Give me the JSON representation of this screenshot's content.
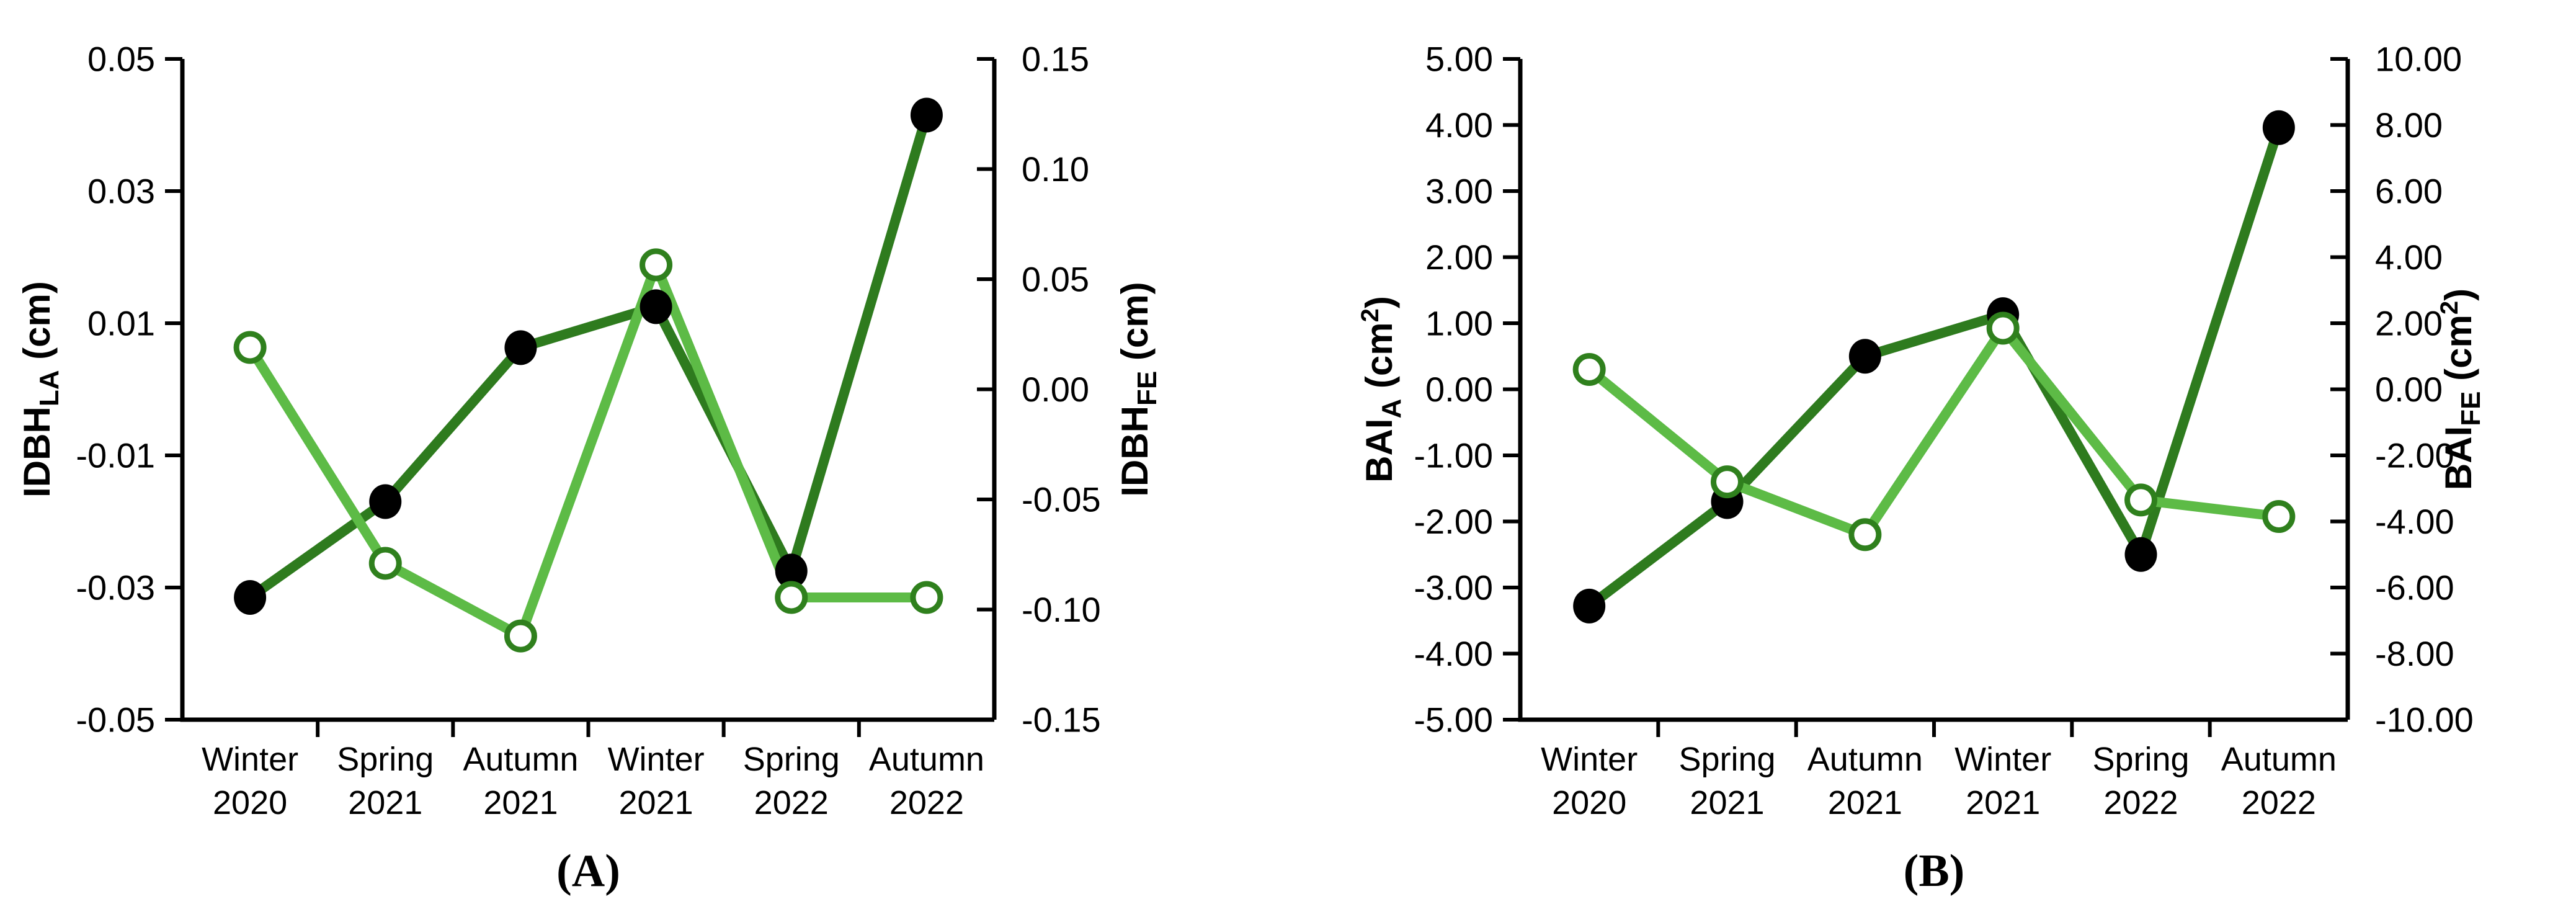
{
  "page": {
    "background": "#ffffff"
  },
  "colors": {
    "dark_green_line": "#2e7b1e",
    "light_green_line": "#5dbb46",
    "open_marker_ring": "#2f801d",
    "filled_marker": "#000000",
    "axis_color": "#000000"
  },
  "chart_data": [
    {
      "id": "A",
      "type": "line",
      "caption": "(A)",
      "categories": [
        [
          "Winter",
          "2020"
        ],
        [
          "Spring",
          "2021"
        ],
        [
          "Autumn",
          "2021"
        ],
        [
          "Winter",
          "2021"
        ],
        [
          "Spring",
          "2022"
        ],
        [
          "Autumn",
          "2022"
        ]
      ],
      "left_axis": {
        "title_main": "IDBH",
        "title_sub": "LA",
        "unit_pre": " (cm",
        "unit_sup": "",
        "unit_post": ")",
        "ticks": [
          "0.05",
          "0.03",
          "0.01",
          "-0.01",
          "-0.03",
          "-0.05"
        ],
        "min": -0.05,
        "max": 0.05
      },
      "right_axis": {
        "title_main": "IDBH",
        "title_sub": "FE",
        "unit_pre": " (cm",
        "unit_sup": "",
        "unit_post": ")",
        "ticks": [
          "0.15",
          "0.10",
          "0.05",
          "0.00",
          "-0.05",
          "-0.10",
          "-0.15"
        ],
        "min": -0.15,
        "max": 0.15
      },
      "series": [
        {
          "name": "IDBH-LA",
          "axis": "left",
          "marker": "filled",
          "color_key": "dark_green_line",
          "values": [
            -0.0315,
            -0.017,
            0.0063,
            0.0125,
            -0.0275,
            0.0415
          ]
        },
        {
          "name": "IDBH-FE",
          "axis": "right",
          "marker": "open",
          "color_key": "light_green_line",
          "values": [
            0.019,
            -0.079,
            -0.112,
            0.0565,
            -0.0945,
            -0.0945
          ]
        }
      ]
    },
    {
      "id": "B",
      "type": "line",
      "caption": "(B)",
      "categories": [
        [
          "Winter",
          "2020"
        ],
        [
          "Spring",
          "2021"
        ],
        [
          "Autumn",
          "2021"
        ],
        [
          "Winter",
          "2021"
        ],
        [
          "Spring",
          "2022"
        ],
        [
          "Autumn",
          "2022"
        ]
      ],
      "left_axis": {
        "title_main": "BAI",
        "title_sub": "A",
        "unit_pre": " (cm",
        "unit_sup": "2",
        "unit_post": ")",
        "ticks": [
          "5.00",
          "4.00",
          "3.00",
          "2.00",
          "1.00",
          "0.00",
          "-1.00",
          "-2.00",
          "-3.00",
          "-4.00",
          "-5.00"
        ],
        "min": -5,
        "max": 5
      },
      "right_axis": {
        "title_main": "BAI",
        "title_sub": "FE",
        "unit_pre": " (cm",
        "unit_sup": "2",
        "unit_post": ")",
        "ticks": [
          "10.00",
          "8.00",
          "6.00",
          "4.00",
          "2.00",
          "0.00",
          "-2.00",
          "-4.00",
          "-6.00",
          "-8.00",
          "-10.00"
        ],
        "min": -10,
        "max": 10
      },
      "series": [
        {
          "name": "BAI-A",
          "axis": "left",
          "marker": "filled",
          "color_key": "dark_green_line",
          "values": [
            -3.28,
            -1.7,
            0.5,
            1.13,
            -2.5,
            3.96
          ]
        },
        {
          "name": "BAI-FE",
          "axis": "right",
          "marker": "open",
          "color_key": "light_green_line",
          "values": [
            0.6,
            -2.8,
            -4.4,
            1.85,
            -3.35,
            -3.85
          ]
        }
      ]
    }
  ]
}
